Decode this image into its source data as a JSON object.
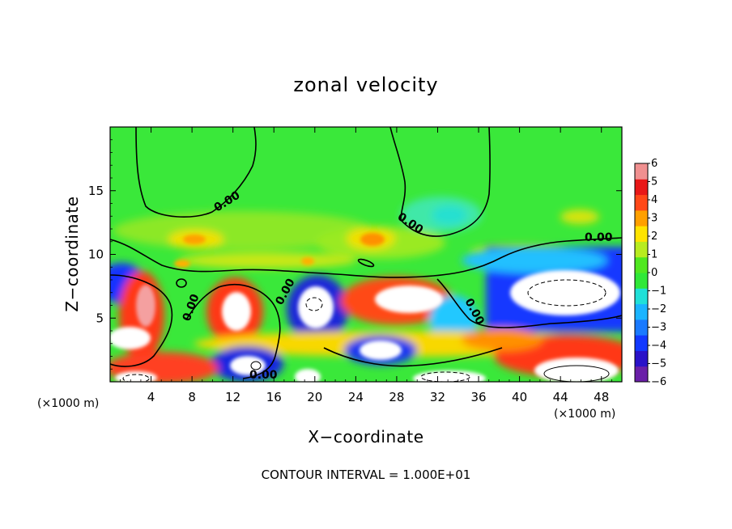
{
  "chart_data": {
    "type": "heatmap",
    "title": "zonal velocity",
    "xlabel": "X−coordinate",
    "ylabel": "Z−coordinate",
    "x_unit_label": "(×1000 m)",
    "z_unit_label": "(×1000 m)",
    "footnote": "CONTOUR INTERVAL = 1.000E+01",
    "xlim": [
      0,
      50
    ],
    "ylim": [
      0,
      20
    ],
    "x_ticks": [
      4,
      8,
      12,
      16,
      20,
      24,
      28,
      32,
      36,
      40,
      44,
      48
    ],
    "y_ticks": [
      5,
      10,
      15
    ],
    "colorbar": {
      "min": -6,
      "max": 6,
      "ticks": [
        6,
        5,
        4,
        3,
        2,
        1,
        0,
        -1,
        -2,
        -3,
        -4,
        -5,
        -6
      ],
      "colors": [
        "#6a1fa8",
        "#2a12c8",
        "#1238ff",
        "#1a7aff",
        "#1ab4ff",
        "#20e0d8",
        "#30e838",
        "#50e820",
        "#b8ec20",
        "#ffe400",
        "#ffa000",
        "#ff4818",
        "#e81818",
        "#f09090"
      ]
    },
    "contour_labels": [
      "0.00",
      "0.00",
      "0.00",
      "0.00",
      "0.00",
      "0.00",
      "0.00"
    ]
  }
}
